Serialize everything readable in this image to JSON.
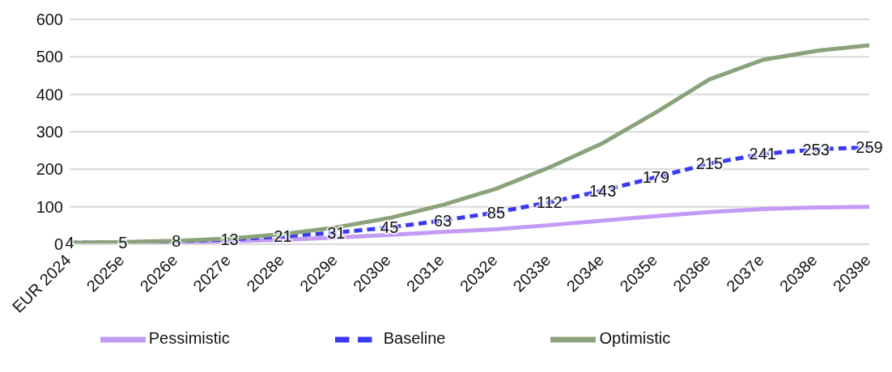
{
  "chart_data": {
    "type": "line",
    "categories": [
      "EUR 2024",
      "2025e",
      "2026e",
      "2027e",
      "2028e",
      "2029e",
      "2030e",
      "2031e",
      "2032e",
      "2033e",
      "2034e",
      "2035e",
      "2036e",
      "2037e",
      "2038e",
      "2039e"
    ],
    "series": [
      {
        "name": "Pessimistic",
        "color": "#c39bf5",
        "line_style": "solid",
        "values": [
          4,
          4,
          5,
          8,
          12,
          18,
          25,
          33,
          40,
          51,
          63,
          75,
          86,
          94,
          98,
          100
        ]
      },
      {
        "name": "Baseline",
        "color": "#3a3af5",
        "line_style": "dashed",
        "values": [
          4,
          5,
          8,
          13,
          21,
          31,
          45,
          63,
          85,
          112,
          143,
          179,
          215,
          241,
          253,
          259
        ],
        "value_labels": [
          "4",
          "5",
          "8",
          "13",
          "21",
          "31",
          "45",
          "63",
          "85",
          "112",
          "143",
          "179",
          "215",
          "241",
          "253",
          "259"
        ]
      },
      {
        "name": "Optimistic",
        "color": "#8aa37b",
        "line_style": "solid",
        "values": [
          4,
          6,
          9,
          15,
          27,
          45,
          70,
          105,
          148,
          205,
          270,
          352,
          440,
          492,
          516,
          531
        ]
      }
    ],
    "ylim": [
      0,
      600
    ],
    "yticks": [
      0,
      100,
      200,
      300,
      400,
      500,
      600
    ],
    "grid": "y",
    "legend": "bottom"
  }
}
